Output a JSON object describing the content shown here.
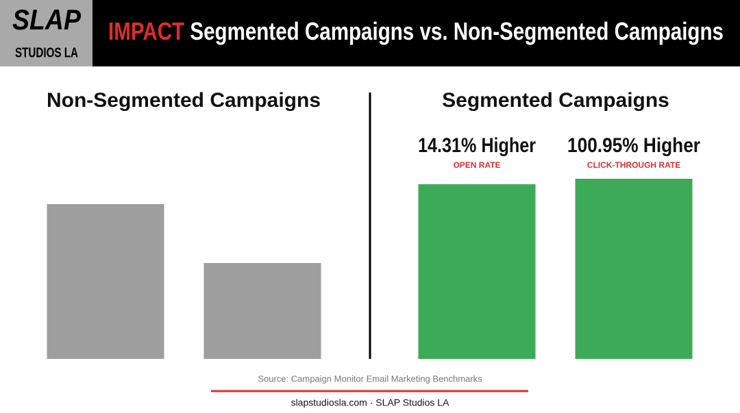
{
  "header": {
    "logo_top": "SLAP",
    "logo_bottom": "STUDIOS LA",
    "title_highlight": "IMPACT",
    "title": "Segmented Campaigns vs. Non-Segmented Campaigns"
  },
  "chart_data": [
    {
      "type": "bar",
      "title": "Non-Segmented Campaigns",
      "categories": [
        null,
        null
      ],
      "values": [
        226,
        140
      ],
      "color": "#9e9e9e",
      "ylim": [
        0,
        300
      ]
    },
    {
      "type": "bar",
      "title": "Segmented Campaigns",
      "categories": [
        "OPEN RATE",
        "CLICK-THROUGH RATE"
      ],
      "annotations": [
        "14.31% Higher",
        "100.95% Higher"
      ],
      "values": [
        255,
        263
      ],
      "color": "#3daa57",
      "ylim": [
        0,
        300
      ]
    }
  ],
  "source": "Source: Campaign Monitor Email Marketing Benchmarks",
  "footer": "slapstudiosla.com · SLAP Studios LA"
}
